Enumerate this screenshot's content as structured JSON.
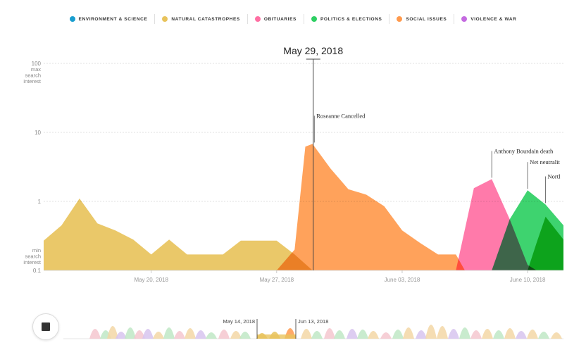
{
  "legend": [
    {
      "label": "ENVIRONMENT & SCIENCE",
      "color": "#1a9ecf"
    },
    {
      "label": "NATURAL CATASTROPHES",
      "color": "#e8c35c"
    },
    {
      "label": "OBITUARIES",
      "color": "#ff6fa3"
    },
    {
      "label": "POLITICS & ELECTIONS",
      "color": "#2ecf63"
    },
    {
      "label": "SOCIAL ISSUES",
      "color": "#ff9a4d"
    },
    {
      "label": "VIOLENCE & WAR",
      "color": "#c46be0"
    }
  ],
  "chart_data": {
    "type": "area",
    "title": "May 29, 2018",
    "yscale": "log",
    "ylim": [
      0.1,
      100
    ],
    "yticks": [
      "100",
      "10",
      "1",
      "0.1"
    ],
    "ymax_label": [
      "max",
      "search",
      "interest"
    ],
    "ymin_label": [
      "min",
      "search",
      "interest"
    ],
    "xlim": [
      "2018-05-14",
      "2018-06-12"
    ],
    "xticks": [
      {
        "date": "2018-05-20",
        "label": "May 20, 2018"
      },
      {
        "date": "2018-05-27",
        "label": "May 27, 2018"
      },
      {
        "date": "2018-06-03",
        "label": "June 03, 2018"
      },
      {
        "date": "2018-06-10",
        "label": "June 10, 2018"
      }
    ],
    "cursor_date": "2018-05-29",
    "series": [
      {
        "category": "NATURAL CATASTROPHES",
        "color": "#e8c35c",
        "points": [
          [
            "2018-05-14",
            0.27
          ],
          [
            "2018-05-15",
            0.45
          ],
          [
            "2018-05-16",
            1.1
          ],
          [
            "2018-05-17",
            0.48
          ],
          [
            "2018-05-18",
            0.38
          ],
          [
            "2018-05-19",
            0.28
          ],
          [
            "2018-05-20",
            0.17
          ],
          [
            "2018-05-21",
            0.28
          ],
          [
            "2018-05-22",
            0.17
          ],
          [
            "2018-05-23",
            0.17
          ],
          [
            "2018-05-24",
            0.17
          ],
          [
            "2018-05-25",
            0.27
          ],
          [
            "2018-05-26",
            0.27
          ],
          [
            "2018-05-27",
            0.27
          ],
          [
            "2018-05-28",
            0.17
          ],
          [
            "2018-05-29",
            0.1
          ]
        ]
      },
      {
        "category": "SOCIAL ISSUES",
        "color": "#ff9a4d",
        "points": [
          [
            "2018-05-27",
            0.1
          ],
          [
            "2018-05-28",
            0.2
          ],
          [
            "2018-05-28.6",
            6.2
          ],
          [
            "2018-05-29",
            6.8
          ],
          [
            "2018-05-30",
            3.0
          ],
          [
            "2018-05-31",
            1.5
          ],
          [
            "2018-06-01",
            1.25
          ],
          [
            "2018-06-02",
            0.85
          ],
          [
            "2018-06-03",
            0.38
          ],
          [
            "2018-06-04",
            0.25
          ],
          [
            "2018-06-05",
            0.17
          ],
          [
            "2018-06-06",
            0.17
          ],
          [
            "2018-06-06.5",
            0.1
          ]
        ]
      },
      {
        "category": "OBITUARIES",
        "color": "#ff6fa3",
        "points": [
          [
            "2018-06-06",
            0.1
          ],
          [
            "2018-06-07",
            1.55
          ],
          [
            "2018-06-08",
            2.1
          ],
          [
            "2018-06-09",
            0.55
          ],
          [
            "2018-06-10",
            0.12
          ],
          [
            "2018-06-10.5",
            0.1
          ]
        ]
      },
      {
        "category": "POLITICS & ELECTIONS",
        "color": "#2ecf63",
        "points": [
          [
            "2018-06-08",
            0.1
          ],
          [
            "2018-06-09",
            0.55
          ],
          [
            "2018-06-10",
            1.45
          ],
          [
            "2018-06-11",
            0.9
          ],
          [
            "2018-06-12",
            0.45
          ]
        ]
      },
      {
        "category": "POLITICS & ELECTIONS",
        "color": "#22c030",
        "points": [
          [
            "2018-06-10",
            0.1
          ],
          [
            "2018-06-10.5",
            0.25
          ],
          [
            "2018-06-11",
            0.6
          ],
          [
            "2018-06-12",
            0.28
          ]
        ]
      }
    ],
    "annotations": [
      {
        "text": "Roseanne Cancelled",
        "date": "2018-05-29.1",
        "value": 6.8
      },
      {
        "text": "Anthony Bourdain death",
        "date": "2018-06-08",
        "value": 2.1
      },
      {
        "text": "Net neutralit",
        "date": "2018-06-10",
        "value": 1.45
      },
      {
        "text": "Nortl",
        "date": "2018-06-11",
        "value": 0.9
      }
    ]
  },
  "timeline": {
    "start_label": "May 14, 2018",
    "end_label": "Jun 13, 2018"
  }
}
